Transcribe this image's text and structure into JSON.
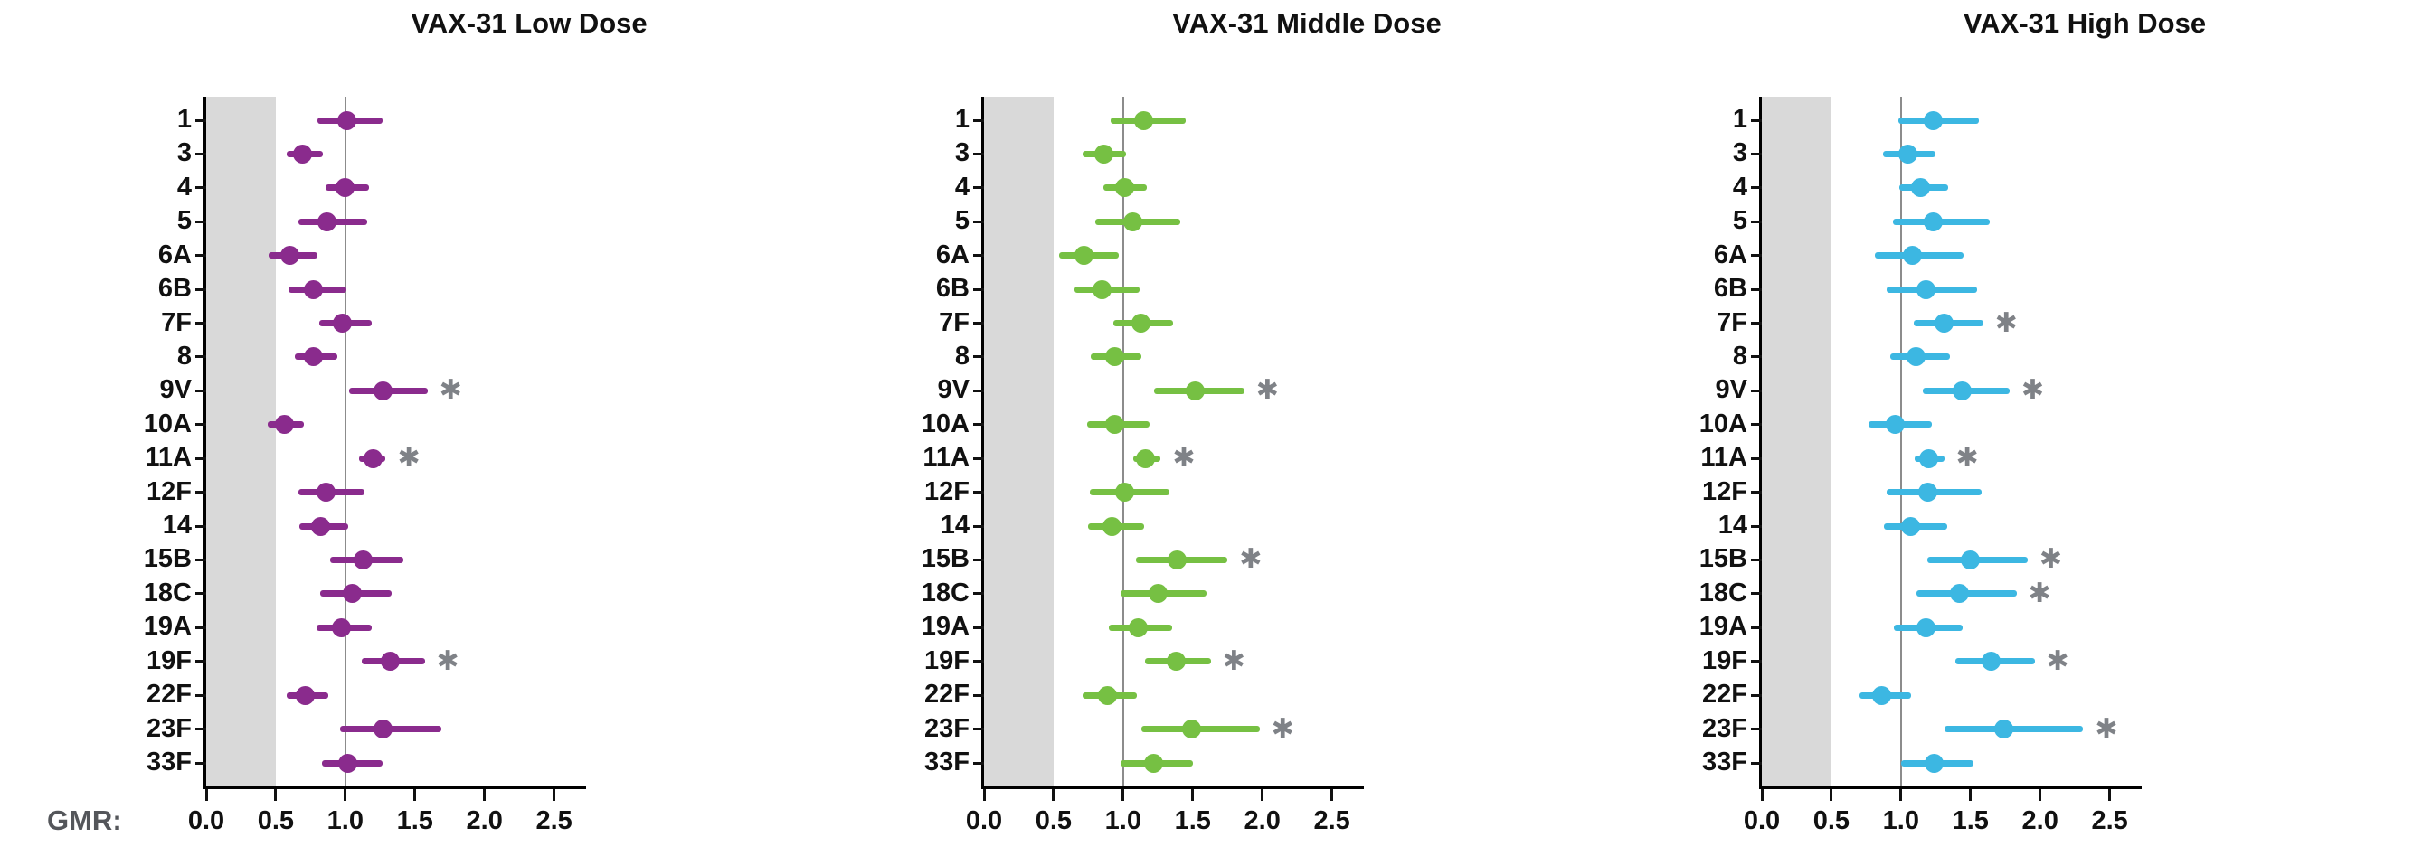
{
  "figure": {
    "axis_label": "GMR:",
    "axis_label_color": "#54565A",
    "x_tick_labels": [
      "0.0",
      "0.5",
      "1.0",
      "1.5",
      "2.0",
      "2.5"
    ],
    "x_tick_values": [
      0,
      0.5,
      1.0,
      1.5,
      2.0,
      2.5
    ],
    "xlim": [
      0,
      2.73
    ],
    "shaded_band": {
      "from": 0,
      "to": 0.5,
      "color": "#D9D9D9"
    },
    "reference_line": {
      "x": 1.0,
      "color": "#8C8C8C"
    },
    "significance_marker": {
      "symbol": "✱",
      "color": "#7F8287"
    },
    "categories": [
      "1",
      "3",
      "4",
      "5",
      "6A",
      "6B",
      "7F",
      "8",
      "9V",
      "10A",
      "11A",
      "12F",
      "14",
      "15B",
      "18C",
      "19A",
      "19F",
      "22F",
      "23F",
      "33F"
    ]
  },
  "chart_data": [
    {
      "type": "scatter",
      "title": "VAX-31 Low Dose",
      "xlabel": "GMR:",
      "xlim": [
        0,
        2.73
      ],
      "x_ticks": [
        0,
        0.5,
        1.0,
        1.5,
        2.0,
        2.5
      ],
      "shaded_band_x": [
        0,
        0.5
      ],
      "reference_line_x": 1.0,
      "point_color": "#8A2B8D",
      "points": [
        {
          "serotype": "1",
          "gmr": 1.01,
          "ci_low": 0.8,
          "ci_high": 1.27,
          "significant": false
        },
        {
          "serotype": "3",
          "gmr": 0.69,
          "ci_low": 0.58,
          "ci_high": 0.84,
          "significant": false
        },
        {
          "serotype": "4",
          "gmr": 1.0,
          "ci_low": 0.86,
          "ci_high": 1.17,
          "significant": false
        },
        {
          "serotype": "5",
          "gmr": 0.87,
          "ci_low": 0.66,
          "ci_high": 1.16,
          "significant": false
        },
        {
          "serotype": "6A",
          "gmr": 0.6,
          "ci_low": 0.45,
          "ci_high": 0.8,
          "significant": false
        },
        {
          "serotype": "6B",
          "gmr": 0.77,
          "ci_low": 0.59,
          "ci_high": 1.01,
          "significant": false
        },
        {
          "serotype": "7F",
          "gmr": 0.98,
          "ci_low": 0.81,
          "ci_high": 1.19,
          "significant": false
        },
        {
          "serotype": "8",
          "gmr": 0.77,
          "ci_low": 0.64,
          "ci_high": 0.94,
          "significant": false
        },
        {
          "serotype": "9V",
          "gmr": 1.27,
          "ci_low": 1.03,
          "ci_high": 1.59,
          "significant": true
        },
        {
          "serotype": "10A",
          "gmr": 0.56,
          "ci_low": 0.44,
          "ci_high": 0.7,
          "significant": false
        },
        {
          "serotype": "11A",
          "gmr": 1.2,
          "ci_low": 1.1,
          "ci_high": 1.29,
          "significant": true
        },
        {
          "serotype": "12F",
          "gmr": 0.86,
          "ci_low": 0.66,
          "ci_high": 1.14,
          "significant": false
        },
        {
          "serotype": "14",
          "gmr": 0.82,
          "ci_low": 0.67,
          "ci_high": 1.02,
          "significant": false
        },
        {
          "serotype": "15B",
          "gmr": 1.13,
          "ci_low": 0.89,
          "ci_high": 1.42,
          "significant": false
        },
        {
          "serotype": "18C",
          "gmr": 1.05,
          "ci_low": 0.82,
          "ci_high": 1.33,
          "significant": false
        },
        {
          "serotype": "19A",
          "gmr": 0.97,
          "ci_low": 0.79,
          "ci_high": 1.19,
          "significant": false
        },
        {
          "serotype": "19F",
          "gmr": 1.32,
          "ci_low": 1.12,
          "ci_high": 1.57,
          "significant": true
        },
        {
          "serotype": "22F",
          "gmr": 0.71,
          "ci_low": 0.58,
          "ci_high": 0.88,
          "significant": false
        },
        {
          "serotype": "23F",
          "gmr": 1.27,
          "ci_low": 0.96,
          "ci_high": 1.69,
          "significant": false
        },
        {
          "serotype": "33F",
          "gmr": 1.02,
          "ci_low": 0.83,
          "ci_high": 1.27,
          "significant": false
        }
      ]
    },
    {
      "type": "scatter",
      "title": "VAX-31 Middle Dose",
      "xlabel": "GMR:",
      "xlim": [
        0,
        2.73
      ],
      "x_ticks": [
        0,
        0.5,
        1.0,
        1.5,
        2.0,
        2.5
      ],
      "shaded_band_x": [
        0,
        0.5
      ],
      "reference_line_x": 1.0,
      "point_color": "#76C043",
      "points": [
        {
          "serotype": "1",
          "gmr": 1.15,
          "ci_low": 0.91,
          "ci_high": 1.45,
          "significant": false
        },
        {
          "serotype": "3",
          "gmr": 0.86,
          "ci_low": 0.71,
          "ci_high": 1.02,
          "significant": false
        },
        {
          "serotype": "4",
          "gmr": 1.01,
          "ci_low": 0.86,
          "ci_high": 1.17,
          "significant": false
        },
        {
          "serotype": "5",
          "gmr": 1.07,
          "ci_low": 0.8,
          "ci_high": 1.41,
          "significant": false
        },
        {
          "serotype": "6A",
          "gmr": 0.72,
          "ci_low": 0.54,
          "ci_high": 0.97,
          "significant": false
        },
        {
          "serotype": "6B",
          "gmr": 0.85,
          "ci_low": 0.65,
          "ci_high": 1.12,
          "significant": false
        },
        {
          "serotype": "7F",
          "gmr": 1.13,
          "ci_low": 0.93,
          "ci_high": 1.36,
          "significant": false
        },
        {
          "serotype": "8",
          "gmr": 0.94,
          "ci_low": 0.77,
          "ci_high": 1.13,
          "significant": false
        },
        {
          "serotype": "9V",
          "gmr": 1.52,
          "ci_low": 1.22,
          "ci_high": 1.87,
          "significant": true
        },
        {
          "serotype": "10A",
          "gmr": 0.94,
          "ci_low": 0.74,
          "ci_high": 1.19,
          "significant": false
        },
        {
          "serotype": "11A",
          "gmr": 1.16,
          "ci_low": 1.07,
          "ci_high": 1.27,
          "significant": true
        },
        {
          "serotype": "12F",
          "gmr": 1.01,
          "ci_low": 0.76,
          "ci_high": 1.33,
          "significant": false
        },
        {
          "serotype": "14",
          "gmr": 0.92,
          "ci_low": 0.75,
          "ci_high": 1.15,
          "significant": false
        },
        {
          "serotype": "15B",
          "gmr": 1.39,
          "ci_low": 1.09,
          "ci_high": 1.75,
          "significant": true
        },
        {
          "serotype": "18C",
          "gmr": 1.25,
          "ci_low": 0.98,
          "ci_high": 1.6,
          "significant": false
        },
        {
          "serotype": "19A",
          "gmr": 1.11,
          "ci_low": 0.9,
          "ci_high": 1.35,
          "significant": false
        },
        {
          "serotype": "19F",
          "gmr": 1.38,
          "ci_low": 1.16,
          "ci_high": 1.63,
          "significant": true
        },
        {
          "serotype": "22F",
          "gmr": 0.89,
          "ci_low": 0.71,
          "ci_high": 1.1,
          "significant": false
        },
        {
          "serotype": "23F",
          "gmr": 1.49,
          "ci_low": 1.13,
          "ci_high": 1.98,
          "significant": true
        },
        {
          "serotype": "33F",
          "gmr": 1.22,
          "ci_low": 0.98,
          "ci_high": 1.5,
          "significant": false
        }
      ]
    },
    {
      "type": "scatter",
      "title": "VAX-31 High Dose",
      "xlabel": "GMR:",
      "xlim": [
        0,
        2.73
      ],
      "x_ticks": [
        0,
        0.5,
        1.0,
        1.5,
        2.0,
        2.5
      ],
      "shaded_band_x": [
        0,
        0.5
      ],
      "reference_line_x": 1.0,
      "point_color": "#3CB7E2",
      "points": [
        {
          "serotype": "1",
          "gmr": 1.23,
          "ci_low": 0.98,
          "ci_high": 1.56,
          "significant": false
        },
        {
          "serotype": "3",
          "gmr": 1.05,
          "ci_low": 0.87,
          "ci_high": 1.25,
          "significant": false
        },
        {
          "serotype": "4",
          "gmr": 1.14,
          "ci_low": 0.99,
          "ci_high": 1.34,
          "significant": false
        },
        {
          "serotype": "5",
          "gmr": 1.23,
          "ci_low": 0.94,
          "ci_high": 1.64,
          "significant": false
        },
        {
          "serotype": "6A",
          "gmr": 1.08,
          "ci_low": 0.81,
          "ci_high": 1.45,
          "significant": false
        },
        {
          "serotype": "6B",
          "gmr": 1.18,
          "ci_low": 0.9,
          "ci_high": 1.55,
          "significant": false
        },
        {
          "serotype": "7F",
          "gmr": 1.31,
          "ci_low": 1.09,
          "ci_high": 1.59,
          "significant": true
        },
        {
          "serotype": "8",
          "gmr": 1.11,
          "ci_low": 0.92,
          "ci_high": 1.35,
          "significant": false
        },
        {
          "serotype": "9V",
          "gmr": 1.44,
          "ci_low": 1.16,
          "ci_high": 1.78,
          "significant": true
        },
        {
          "serotype": "10A",
          "gmr": 0.96,
          "ci_low": 0.77,
          "ci_high": 1.22,
          "significant": false
        },
        {
          "serotype": "11A",
          "gmr": 1.2,
          "ci_low": 1.1,
          "ci_high": 1.31,
          "significant": true
        },
        {
          "serotype": "12F",
          "gmr": 1.19,
          "ci_low": 0.9,
          "ci_high": 1.58,
          "significant": false
        },
        {
          "serotype": "14",
          "gmr": 1.07,
          "ci_low": 0.88,
          "ci_high": 1.33,
          "significant": false
        },
        {
          "serotype": "15B",
          "gmr": 1.5,
          "ci_low": 1.19,
          "ci_high": 1.91,
          "significant": true
        },
        {
          "serotype": "18C",
          "gmr": 1.42,
          "ci_low": 1.11,
          "ci_high": 1.83,
          "significant": true
        },
        {
          "serotype": "19A",
          "gmr": 1.18,
          "ci_low": 0.95,
          "ci_high": 1.44,
          "significant": false
        },
        {
          "serotype": "19F",
          "gmr": 1.65,
          "ci_low": 1.39,
          "ci_high": 1.96,
          "significant": true
        },
        {
          "serotype": "22F",
          "gmr": 0.86,
          "ci_low": 0.7,
          "ci_high": 1.07,
          "significant": false
        },
        {
          "serotype": "23F",
          "gmr": 1.74,
          "ci_low": 1.31,
          "ci_high": 2.31,
          "significant": true
        },
        {
          "serotype": "33F",
          "gmr": 1.24,
          "ci_low": 1.0,
          "ci_high": 1.52,
          "significant": false
        }
      ]
    }
  ]
}
